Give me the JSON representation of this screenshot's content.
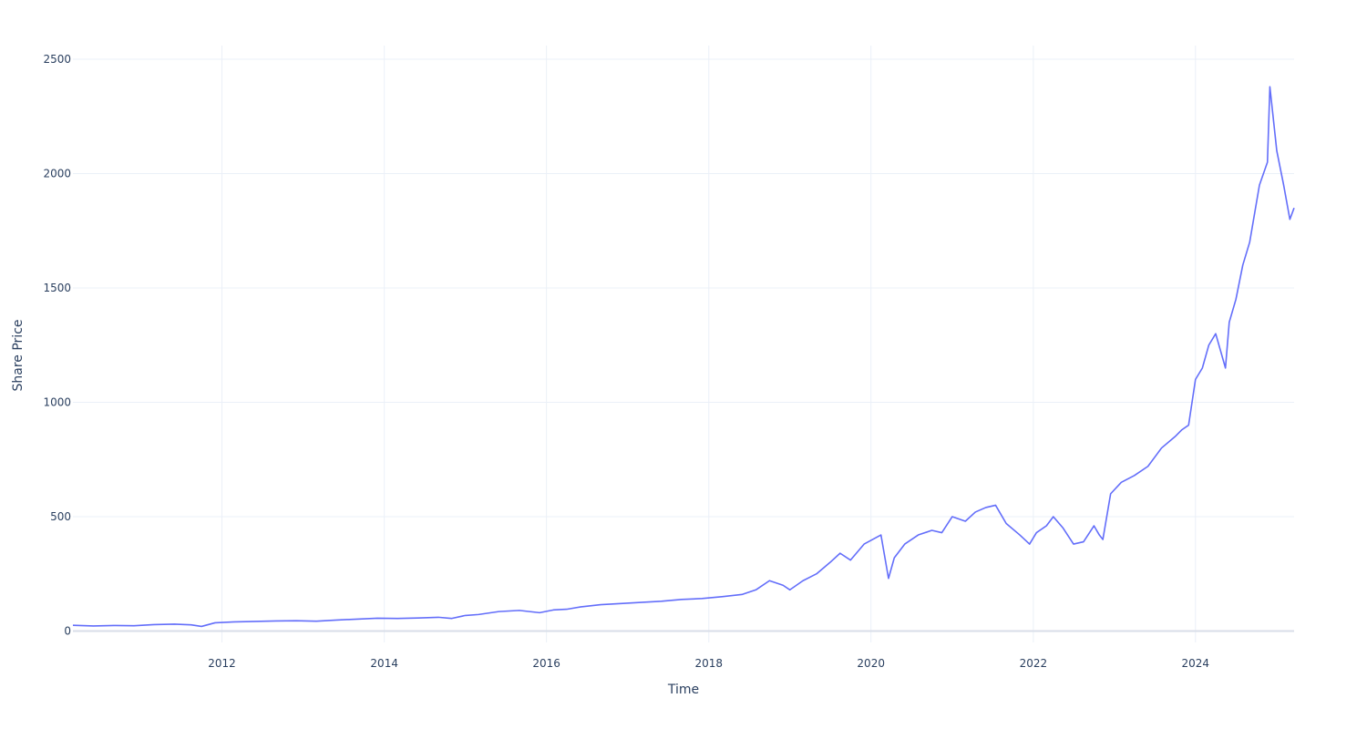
{
  "chart_data": {
    "type": "line",
    "title": "",
    "xlabel": "Time",
    "ylabel": "Share Price",
    "xlim": [
      "2010-03-01",
      "2025-03-20"
    ],
    "ylim": [
      -50,
      2560
    ],
    "grid": true,
    "legend": "none",
    "x_ticks": [
      {
        "value": "2012-01-01",
        "label": "2012"
      },
      {
        "value": "2014-01-01",
        "label": "2014"
      },
      {
        "value": "2016-01-01",
        "label": "2016"
      },
      {
        "value": "2018-01-01",
        "label": "2018"
      },
      {
        "value": "2020-01-01",
        "label": "2020"
      },
      {
        "value": "2022-01-01",
        "label": "2022"
      },
      {
        "value": "2024-01-01",
        "label": "2024"
      }
    ],
    "y_ticks": [
      {
        "value": 0,
        "label": "0"
      },
      {
        "value": 500,
        "label": "500"
      },
      {
        "value": 1000,
        "label": "1000"
      },
      {
        "value": 1500,
        "label": "1500"
      },
      {
        "value": 2000,
        "label": "2000"
      },
      {
        "value": 2500,
        "label": "2500"
      }
    ],
    "series": [
      {
        "color": "#636efa",
        "x": [
          "2010-03-01",
          "2010-06-01",
          "2010-09-01",
          "2010-12-01",
          "2011-03-01",
          "2011-06-01",
          "2011-08-15",
          "2011-10-01",
          "2011-12-01",
          "2012-03-01",
          "2012-06-01",
          "2012-09-01",
          "2012-12-01",
          "2013-03-01",
          "2013-06-01",
          "2013-09-01",
          "2013-12-01",
          "2014-03-01",
          "2014-06-01",
          "2014-09-01",
          "2014-11-01",
          "2015-01-01",
          "2015-03-01",
          "2015-06-01",
          "2015-09-01",
          "2015-12-01",
          "2016-02-01",
          "2016-04-01",
          "2016-06-01",
          "2016-09-01",
          "2016-12-01",
          "2017-03-01",
          "2017-06-01",
          "2017-09-01",
          "2017-12-01",
          "2018-03-01",
          "2018-06-01",
          "2018-08-01",
          "2018-10-01",
          "2018-12-01",
          "2019-01-01",
          "2019-03-01",
          "2019-05-01",
          "2019-07-01",
          "2019-08-15",
          "2019-10-01",
          "2019-12-01",
          "2020-02-15",
          "2020-03-20",
          "2020-04-15",
          "2020-06-01",
          "2020-08-01",
          "2020-10-01",
          "2020-11-15",
          "2021-01-01",
          "2021-03-01",
          "2021-04-15",
          "2021-06-01",
          "2021-07-15",
          "2021-09-01",
          "2021-11-01",
          "2021-12-15",
          "2022-01-15",
          "2022-03-01",
          "2022-04-01",
          "2022-05-15",
          "2022-07-01",
          "2022-08-15",
          "2022-10-01",
          "2022-10-25",
          "2022-11-10",
          "2022-12-15",
          "2023-02-01",
          "2023-04-01",
          "2023-06-01",
          "2023-08-01",
          "2023-10-01",
          "2023-11-01",
          "2023-12-01",
          "2024-01-01",
          "2024-02-01",
          "2024-03-01",
          "2024-04-01",
          "2024-05-15",
          "2024-06-01",
          "2024-07-01",
          "2024-08-01",
          "2024-09-01",
          "2024-10-15",
          "2024-11-20",
          "2024-12-01",
          "2025-01-01",
          "2025-02-01",
          "2025-03-01",
          "2025-03-20"
        ],
        "y": [
          25,
          22,
          24,
          23,
          28,
          30,
          27,
          20,
          36,
          40,
          42,
          44,
          45,
          43,
          48,
          52,
          56,
          55,
          57,
          60,
          55,
          68,
          72,
          85,
          90,
          80,
          92,
          95,
          105,
          115,
          120,
          125,
          130,
          138,
          142,
          150,
          160,
          180,
          220,
          200,
          180,
          220,
          250,
          300,
          340,
          310,
          380,
          420,
          230,
          320,
          380,
          420,
          440,
          430,
          500,
          480,
          520,
          540,
          550,
          470,
          420,
          380,
          430,
          460,
          500,
          450,
          380,
          390,
          460,
          420,
          400,
          600,
          650,
          680,
          720,
          800,
          850,
          880,
          900,
          1100,
          1150,
          1250,
          1300,
          1150,
          1350,
          1450,
          1600,
          1700,
          1950,
          2050,
          2380,
          2100,
          1950,
          1800,
          1850
        ]
      }
    ]
  }
}
